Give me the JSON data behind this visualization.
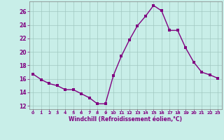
{
  "x": [
    0,
    1,
    2,
    3,
    4,
    5,
    6,
    7,
    8,
    9,
    10,
    11,
    12,
    13,
    14,
    15,
    16,
    17,
    18,
    19,
    20,
    21,
    22,
    23
  ],
  "y": [
    16.7,
    15.9,
    15.3,
    15.0,
    14.4,
    14.4,
    13.8,
    13.2,
    12.3,
    12.3,
    16.5,
    19.4,
    21.8,
    23.9,
    25.3,
    26.9,
    26.1,
    23.2,
    23.2,
    20.6,
    18.5,
    17.0,
    16.6,
    16.1
  ],
  "line_color": "#800080",
  "marker": "s",
  "marker_size": 2.5,
  "xlabel": "Windchill (Refroidissement éolien,°C)",
  "xlabel_color": "#800080",
  "bg_color": "#c8eee8",
  "grid_color": "#a0c8c0",
  "tick_color": "#800080",
  "yticks": [
    12,
    14,
    16,
    18,
    20,
    22,
    24,
    26
  ],
  "xticks": [
    0,
    1,
    2,
    3,
    4,
    5,
    6,
    7,
    8,
    9,
    10,
    11,
    12,
    13,
    14,
    15,
    16,
    17,
    18,
    19,
    20,
    21,
    22,
    23
  ],
  "ylim": [
    11.5,
    27.5
  ],
  "xlim": [
    -0.5,
    23.5
  ],
  "spine_color": "#808080"
}
